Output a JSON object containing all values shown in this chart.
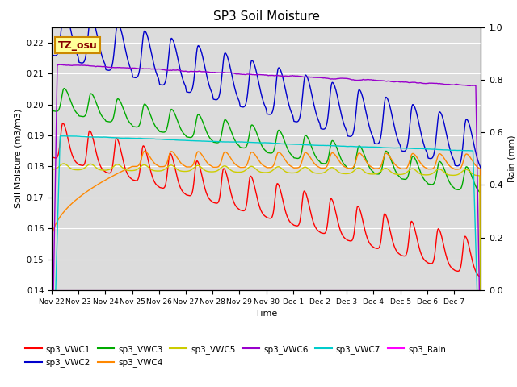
{
  "title": "SP3 Soil Moisture",
  "xlabel": "Time",
  "ylabel_left": "Soil Moisture (m3/m3)",
  "ylabel_right": "Rain (mm)",
  "ylim_left": [
    0.14,
    0.225
  ],
  "ylim_right": [
    0.0,
    1.0
  ],
  "bg_color": "#dcdcdc",
  "annotation_text": "TZ_osu",
  "annotation_bg": "#ffff99",
  "annotation_border": "#cc8800",
  "series_colors": {
    "sp3_VWC1": "#ff0000",
    "sp3_VWC2": "#0000cc",
    "sp3_VWC3": "#00aa00",
    "sp3_VWC4": "#ff8800",
    "sp3_VWC5": "#cccc00",
    "sp3_VWC6": "#9900cc",
    "sp3_VWC7": "#00cccc",
    "sp3_Rain": "#ff00ff"
  },
  "x_tick_labels": [
    "Nov 22",
    "Nov 23",
    "Nov 24",
    "Nov 25",
    "Nov 26",
    "Nov 27",
    "Nov 28",
    "Nov 29",
    "Nov 30",
    "Dec 1",
    "Dec 2",
    "Dec 3",
    "Dec 4",
    "Dec 5",
    "Dec 6",
    "Dec 7"
  ],
  "n_days": 16
}
